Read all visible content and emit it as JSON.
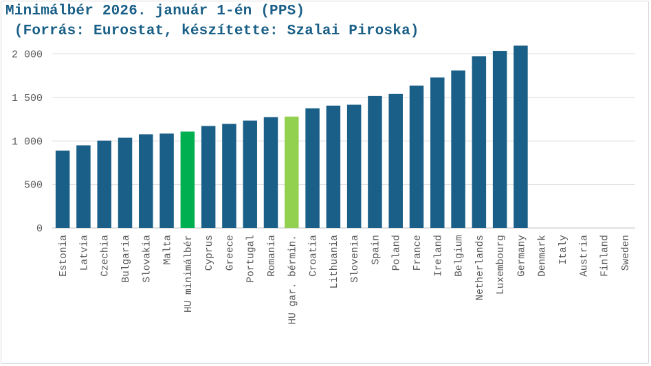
{
  "chart_data": {
    "type": "bar",
    "title": "Minimálbér 2026. január 1-én (PPS)",
    "subtitle": " (Forrás: Eurostat, készítette: Szalai Piroska)",
    "categories": [
      "Estonia",
      "Latvia",
      "Czechia",
      "Bulgaria",
      "Slovakia",
      "Malta",
      "HU minimálbér",
      "Cyprus",
      "Greece",
      "Portugal",
      "Romania",
      "HU gar. bérmin.",
      "Croatia",
      "Lithuania",
      "Slovenia",
      "Spain",
      "Poland",
      "France",
      "Ireland",
      "Belgium",
      "Netherlands",
      "Luxembourg",
      "Germany",
      "Denmark",
      "Italy",
      "Austria",
      "Finland",
      "Sweden"
    ],
    "values": [
      888,
      950,
      1004,
      1037,
      1077,
      1085,
      1108,
      1172,
      1196,
      1234,
      1274,
      1280,
      1375,
      1406,
      1416,
      1516,
      1540,
      1636,
      1730,
      1810,
      1972,
      2035,
      2095,
      null,
      null,
      null,
      null,
      null
    ],
    "colors": [
      "#1a5f87",
      "#1a5f87",
      "#1a5f87",
      "#1a5f87",
      "#1a5f87",
      "#1a5f87",
      "#00b050",
      "#1a5f87",
      "#1a5f87",
      "#1a5f87",
      "#1a5f87",
      "#92d050",
      "#1a5f87",
      "#1a5f87",
      "#1a5f87",
      "#1a5f87",
      "#1a5f87",
      "#1a5f87",
      "#1a5f87",
      "#1a5f87",
      "#1a5f87",
      "#1a5f87",
      "#1a5f87",
      "#1a5f87",
      "#1a5f87",
      "#1a5f87",
      "#1a5f87",
      "#1a5f87"
    ],
    "yticks": [
      0,
      500,
      1000,
      1500,
      2000
    ],
    "ytick_labels": [
      "0",
      "500",
      "1 000",
      "1 500",
      "2 000"
    ],
    "ylim": [
      0,
      2100
    ],
    "grid": true,
    "xlabel": "",
    "ylabel": ""
  }
}
